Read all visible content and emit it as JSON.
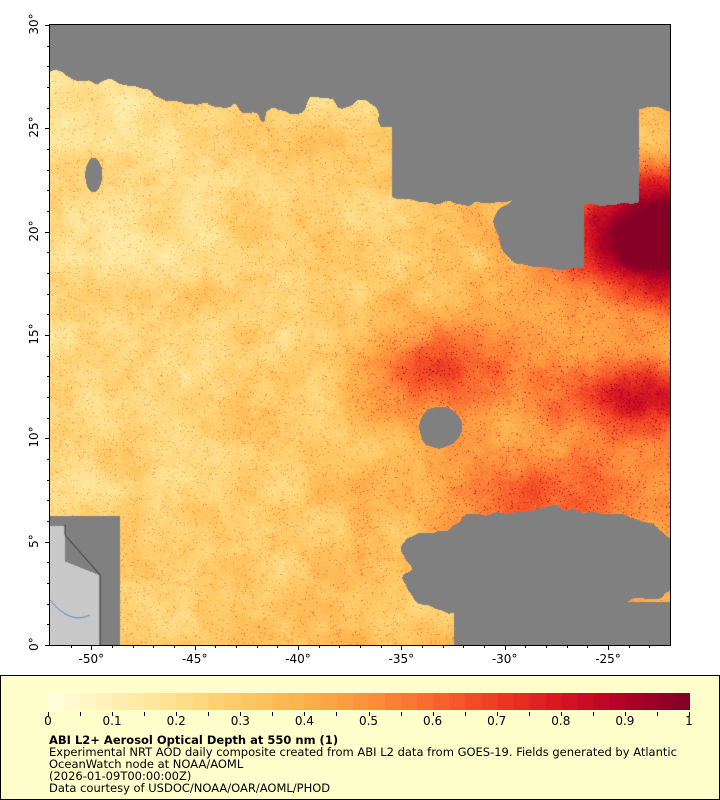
{
  "map": {
    "lat_range": [
      0,
      30
    ],
    "lon_range": [
      -52,
      -22
    ],
    "lat_ticks": [
      "0°",
      "5°",
      "10°",
      "15°",
      "20°",
      "25°",
      "30°"
    ],
    "lat_values": [
      0,
      5,
      10,
      15,
      20,
      25,
      30
    ],
    "lon_ticks": [
      "-50°",
      "-45°",
      "-40°",
      "-35°",
      "-30°",
      "-25°"
    ],
    "lon_values": [
      -50,
      -45,
      -40,
      -35,
      -30,
      -25
    ],
    "no_data_color": "#808080",
    "land_color": "#c8c8c8"
  },
  "colorbar": {
    "range": [
      0,
      1
    ],
    "tick_labels": [
      "0",
      "0.1",
      "0.2",
      "0.3",
      "0.4",
      "0.5",
      "0.6",
      "0.7",
      "0.8",
      "0.9",
      "1"
    ],
    "stops": [
      "#ffffe0",
      "#fff0b4",
      "#fee08e",
      "#fec965",
      "#fdb04c",
      "#fc903d",
      "#f9662e",
      "#ee3a24",
      "#d41522",
      "#b00026",
      "#800026"
    ]
  },
  "legend": {
    "title": "ABI L2+ Aerosol Optical Depth at 550 nm (1)",
    "line1": "Experimental NRT AOD daily composite created from ABI L2 data from GOES-19. Fields generated by Atlantic",
    "line2": "OceanWatch node at NOAA/AOML",
    "line3": "(2026-01-09T00:00:00Z)",
    "line4": "Data courtesy of USDOC/NOAA/OAR/AOML/PHOD"
  }
}
